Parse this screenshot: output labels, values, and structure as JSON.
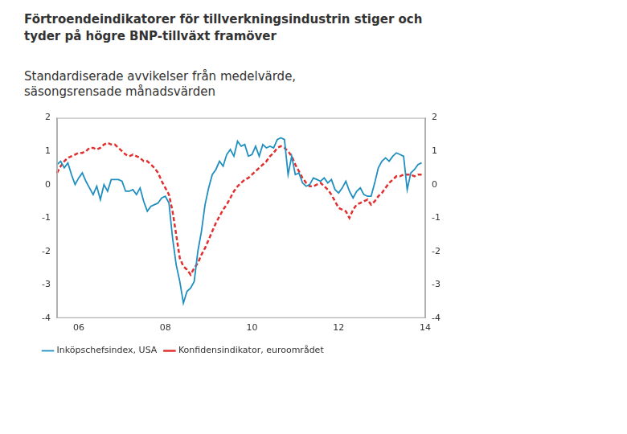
{
  "chart_data": {
    "type": "line",
    "title": "Förtroendeindikatorer för tillverkningsindustrin stiger och tyder på högre BNP-tillväxt framöver",
    "subtitle": "Standardiserade avvikelser från medelvärde, säsongsrensade månadsvärden",
    "categories": [
      null,
      null,
      null,
      null,
      null,
      null,
      "06",
      null,
      null,
      null,
      null,
      null,
      null,
      null,
      null,
      null,
      null,
      null,
      null,
      null,
      null,
      null,
      null,
      null,
      null,
      null,
      null,
      null,
      null,
      null,
      "08",
      null,
      null,
      null,
      null,
      null,
      null,
      null,
      null,
      null,
      null,
      null,
      null,
      null,
      null,
      null,
      null,
      null,
      null,
      null,
      null,
      null,
      null,
      null,
      "10",
      null,
      null,
      null,
      null,
      null,
      null,
      null,
      null,
      null,
      null,
      null,
      null,
      null,
      null,
      null,
      null,
      null,
      null,
      null,
      null,
      null,
      null,
      null,
      "12",
      null,
      null,
      null,
      null,
      null,
      null,
      null,
      null,
      null,
      null,
      null,
      null,
      null,
      null,
      null,
      null,
      null,
      null,
      null,
      null,
      null,
      null,
      null,
      "14"
    ],
    "series": [
      {
        "name": "Inköpschefsindex, USA",
        "color": "#1f8fc0",
        "line_style": "solid",
        "values": [
          0.6,
          0.7,
          0.5,
          0.65,
          0.3,
          0.0,
          0.2,
          0.35,
          0.1,
          -0.1,
          -0.3,
          -0.05,
          -0.45,
          0.0,
          -0.2,
          0.15,
          0.15,
          0.15,
          0.1,
          -0.2,
          -0.2,
          -0.15,
          -0.3,
          -0.1,
          -0.5,
          -0.8,
          -0.65,
          -0.6,
          -0.55,
          -0.4,
          -0.35,
          -0.55,
          -1.6,
          -2.4,
          -2.9,
          -3.55,
          -3.2,
          -3.1,
          -2.9,
          -2.0,
          -1.4,
          -0.6,
          -0.1,
          0.3,
          0.45,
          0.7,
          0.55,
          0.9,
          1.05,
          0.85,
          1.3,
          1.15,
          1.2,
          0.85,
          0.9,
          1.15,
          0.85,
          1.2,
          1.1,
          1.15,
          1.1,
          1.35,
          1.4,
          1.35,
          0.3,
          0.85,
          0.3,
          0.35,
          0.05,
          -0.05,
          0.0,
          0.2,
          0.15,
          0.1,
          0.2,
          0.05,
          0.15,
          -0.15,
          -0.25,
          -0.1,
          0.1,
          -0.2,
          -0.4,
          -0.2,
          -0.1,
          -0.3,
          -0.35,
          -0.35,
          0.05,
          0.5,
          0.7,
          0.8,
          0.7,
          0.85,
          0.95,
          0.9,
          0.85,
          -0.15,
          0.35,
          0.45,
          0.6,
          0.65,
          null
        ]
      },
      {
        "name": "Konfidensindikator, euroområdet",
        "color": "#e03030",
        "line_style": "dashed",
        "axis": "y2",
        "values": [
          0.35,
          0.55,
          0.7,
          0.8,
          0.85,
          0.9,
          0.95,
          0.95,
          1.0,
          1.1,
          1.1,
          1.05,
          1.1,
          1.2,
          1.25,
          1.2,
          1.2,
          1.1,
          1.0,
          0.9,
          0.85,
          0.9,
          0.85,
          0.8,
          0.7,
          0.7,
          0.6,
          0.5,
          0.35,
          0.1,
          -0.1,
          -0.3,
          -0.8,
          -1.5,
          -2.2,
          -2.45,
          -2.55,
          -2.7,
          -2.5,
          -2.35,
          -2.1,
          -1.9,
          -1.65,
          -1.4,
          -1.15,
          -0.95,
          -0.75,
          -0.6,
          -0.4,
          -0.2,
          -0.05,
          0.05,
          0.15,
          0.2,
          0.3,
          0.4,
          0.5,
          0.6,
          0.7,
          0.85,
          0.95,
          1.1,
          1.15,
          1.1,
          1.0,
          0.85,
          0.6,
          0.4,
          0.2,
          0.05,
          -0.05,
          -0.05,
          0.0,
          0.05,
          -0.05,
          -0.15,
          -0.3,
          -0.5,
          -0.7,
          -0.75,
          -0.8,
          -1.0,
          -0.75,
          -0.6,
          -0.55,
          -0.5,
          -0.45,
          -0.6,
          -0.5,
          -0.35,
          -0.25,
          -0.1,
          0.05,
          0.15,
          0.25,
          0.25,
          0.3,
          0.3,
          0.3,
          0.25,
          0.3,
          0.3,
          null
        ]
      }
    ],
    "ylim": [
      -4,
      2
    ],
    "yticks": [
      -4,
      -3,
      -2,
      -1,
      0,
      1,
      2
    ],
    "y2lim": [
      -4,
      2
    ],
    "y2ticks": [
      -4,
      -3,
      -2,
      -1,
      0,
      1,
      2
    ],
    "grid": false,
    "legend": "bottom-left"
  }
}
